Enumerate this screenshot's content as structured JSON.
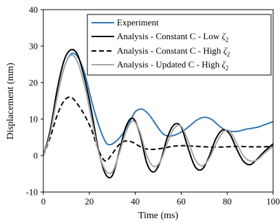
{
  "chart_data": {
    "type": "line",
    "xlabel": "Time (ms)",
    "ylabel": "Displacement (mm)",
    "xlim": [
      0,
      100
    ],
    "ylim": [
      -10,
      40
    ],
    "xticks": [
      0,
      20,
      40,
      60,
      80,
      100
    ],
    "yticks": [
      -10,
      0,
      10,
      20,
      30,
      40
    ],
    "grid": false,
    "legend_position": "top-right",
    "series": [
      {
        "name": "Experiment",
        "name_main": "Experiment",
        "name_sub": "",
        "color": "#2e75b6",
        "dash": "solid",
        "x": [
          0,
          3,
          6,
          9,
          12,
          15,
          18,
          21,
          24,
          27,
          29,
          31,
          34,
          37,
          40,
          43,
          46,
          49,
          52,
          55,
          58,
          61,
          64,
          67,
          70,
          73,
          76,
          79,
          82,
          85,
          88,
          91,
          94,
          97,
          100
        ],
        "y": [
          0,
          6.5,
          16,
          24,
          27.8,
          27,
          22.5,
          15,
          8.5,
          3.8,
          3,
          3.6,
          5.5,
          8.5,
          12,
          12.7,
          11.2,
          8.5,
          6,
          5.3,
          5.8,
          6.8,
          8.3,
          9.8,
          10.5,
          10,
          8.4,
          7,
          6.6,
          6.7,
          7.2,
          7.5,
          7.9,
          8.6,
          9.3
        ]
      },
      {
        "name": "Analysis - Constant C - Low ζ2",
        "name_main": "Analysis - Constant C - Low ",
        "name_sub": "2",
        "color": "#000000",
        "dash": "solid",
        "x": [
          0,
          3,
          6,
          9,
          12,
          15,
          18,
          21,
          24,
          27,
          30,
          33,
          36,
          39,
          42,
          45,
          48,
          51,
          54,
          57,
          60,
          63,
          66,
          69,
          72,
          75,
          78,
          81,
          84,
          87,
          90,
          93,
          96,
          100
        ],
        "y": [
          0,
          7,
          18,
          26,
          29,
          27.5,
          21,
          12,
          1.5,
          -5,
          -5.5,
          1,
          8,
          10.2,
          6,
          -2,
          -4.5,
          -1.5,
          5,
          8.5,
          7.8,
          2,
          -3,
          -3.8,
          -0.5,
          4.5,
          7,
          6,
          2,
          -1.5,
          -2.5,
          -1,
          1,
          3.2
        ]
      },
      {
        "name": "Analysis - Constant C - High ζ2",
        "name_main": "Analysis - Constant C - High ",
        "name_sub": "2",
        "color": "#000000",
        "dash": "dashed",
        "x": [
          0,
          3,
          6,
          9,
          12,
          15,
          18,
          21,
          24,
          27,
          30,
          33,
          36,
          39,
          42,
          45,
          48,
          52,
          56,
          60,
          65,
          70,
          75,
          80,
          85,
          90,
          95,
          100
        ],
        "y": [
          0,
          5,
          11,
          15,
          16,
          14,
          11,
          7,
          1.5,
          -1.5,
          0.5,
          3,
          4,
          3.6,
          2.5,
          1.8,
          1.7,
          2,
          2.5,
          2.7,
          2.6,
          2.4,
          2.3,
          2.4,
          2.5,
          2.4,
          2.4,
          2.5
        ]
      },
      {
        "name": "Analysis - Updated C - High ζ2",
        "name_main": "Analysis - Updated C - High ",
        "name_sub": "2",
        "color": "#a6a6a6",
        "dash": "solid",
        "x": [
          0,
          3,
          6,
          9,
          12,
          15,
          18,
          21,
          24,
          27,
          30,
          33,
          36,
          39,
          42,
          45,
          48,
          51,
          54,
          57,
          60,
          63,
          66,
          69,
          72,
          75,
          78,
          81,
          84,
          87,
          90,
          93,
          96,
          100
        ],
        "y": [
          0,
          6,
          16,
          24,
          27.5,
          25.5,
          19,
          10,
          1,
          -4,
          -4.5,
          0.5,
          6.5,
          9.5,
          6.5,
          0,
          -3,
          -1.5,
          3.5,
          7.5,
          8,
          4,
          -1,
          -2.8,
          -1,
          3,
          6.3,
          6.8,
          3.5,
          0,
          -1.5,
          -1.2,
          0.5,
          2.5
        ]
      }
    ]
  }
}
